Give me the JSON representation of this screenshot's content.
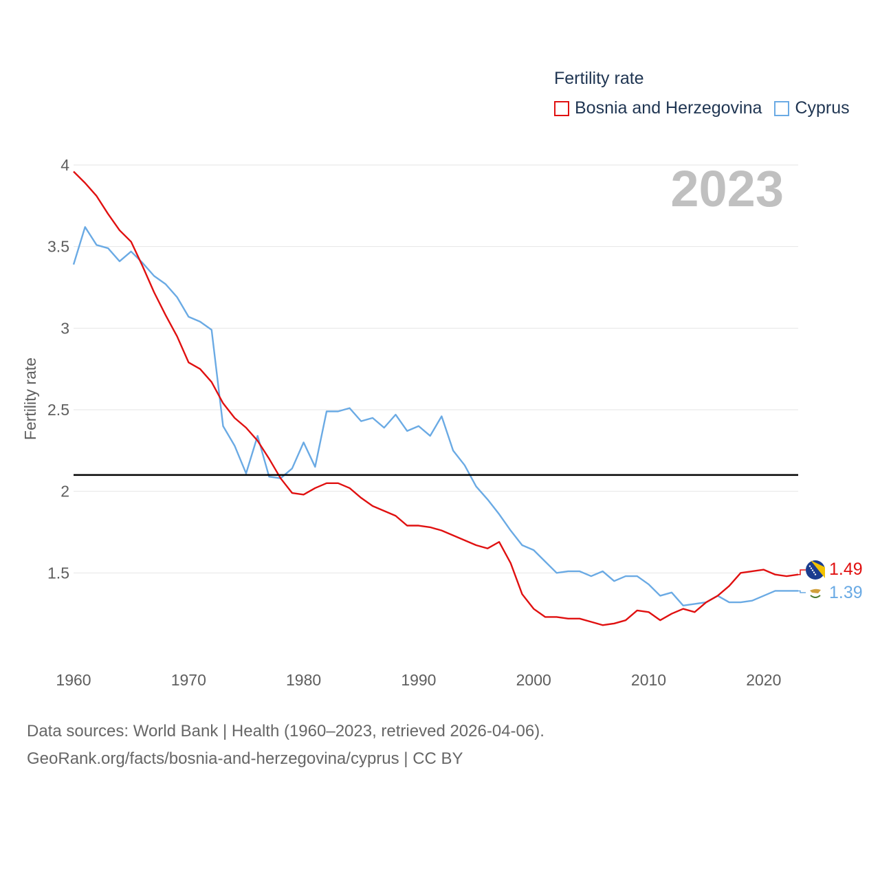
{
  "chart_data": {
    "type": "line",
    "legend_title": "Fertility rate",
    "ylabel": "Fertility rate",
    "xlabel": "",
    "year_label": "2023",
    "xlim": [
      1960,
      2023
    ],
    "ylim": [
      1.0,
      4.0
    ],
    "x_ticks": [
      1960,
      1970,
      1980,
      1990,
      2000,
      2010,
      2020
    ],
    "y_ticks": [
      {
        "value": 1.5,
        "label": "1.5"
      },
      {
        "value": 2,
        "label": "2"
      },
      {
        "value": 2.5,
        "label": "2.5"
      },
      {
        "value": 3,
        "label": "3"
      },
      {
        "value": 3.5,
        "label": "3.5"
      },
      {
        "value": 4,
        "label": "4"
      }
    ],
    "reference_line": 2.1,
    "grid": true,
    "legend_position": "top-right",
    "series": [
      {
        "name": "Bosnia and Herzegovina",
        "color": "#e01010",
        "end_label": "1.49",
        "flag": "bosnia-flag-icon",
        "points": [
          [
            1960,
            3.96
          ],
          [
            1961,
            3.89
          ],
          [
            1962,
            3.81
          ],
          [
            1963,
            3.7
          ],
          [
            1964,
            3.6
          ],
          [
            1965,
            3.53
          ],
          [
            1966,
            3.38
          ],
          [
            1967,
            3.22
          ],
          [
            1968,
            3.08
          ],
          [
            1969,
            2.95
          ],
          [
            1970,
            2.79
          ],
          [
            1971,
            2.75
          ],
          [
            1972,
            2.67
          ],
          [
            1973,
            2.54
          ],
          [
            1974,
            2.45
          ],
          [
            1975,
            2.39
          ],
          [
            1976,
            2.31
          ],
          [
            1977,
            2.2
          ],
          [
            1978,
            2.08
          ],
          [
            1979,
            1.99
          ],
          [
            1980,
            1.98
          ],
          [
            1981,
            2.02
          ],
          [
            1982,
            2.05
          ],
          [
            1983,
            2.05
          ],
          [
            1984,
            2.02
          ],
          [
            1985,
            1.96
          ],
          [
            1986,
            1.91
          ],
          [
            1987,
            1.88
          ],
          [
            1988,
            1.85
          ],
          [
            1989,
            1.79
          ],
          [
            1990,
            1.79
          ],
          [
            1991,
            1.78
          ],
          [
            1992,
            1.76
          ],
          [
            1993,
            1.73
          ],
          [
            1994,
            1.7
          ],
          [
            1995,
            1.67
          ],
          [
            1996,
            1.65
          ],
          [
            1997,
            1.69
          ],
          [
            1998,
            1.56
          ],
          [
            1999,
            1.37
          ],
          [
            2000,
            1.28
          ],
          [
            2001,
            1.23
          ],
          [
            2002,
            1.23
          ],
          [
            2003,
            1.22
          ],
          [
            2004,
            1.22
          ],
          [
            2005,
            1.2
          ],
          [
            2006,
            1.18
          ],
          [
            2007,
            1.19
          ],
          [
            2008,
            1.21
          ],
          [
            2009,
            1.27
          ],
          [
            2010,
            1.26
          ],
          [
            2011,
            1.21
          ],
          [
            2012,
            1.25
          ],
          [
            2013,
            1.28
          ],
          [
            2014,
            1.26
          ],
          [
            2015,
            1.32
          ],
          [
            2016,
            1.36
          ],
          [
            2017,
            1.42
          ],
          [
            2018,
            1.5
          ],
          [
            2019,
            1.51
          ],
          [
            2020,
            1.52
          ],
          [
            2021,
            1.49
          ],
          [
            2022,
            1.48
          ],
          [
            2023,
            1.49
          ]
        ]
      },
      {
        "name": "Cyprus",
        "color": "#6aaae4",
        "end_label": "1.39",
        "flag": "cyprus-flag-icon",
        "points": [
          [
            1960,
            3.39
          ],
          [
            1961,
            3.62
          ],
          [
            1962,
            3.51
          ],
          [
            1963,
            3.49
          ],
          [
            1964,
            3.41
          ],
          [
            1965,
            3.47
          ],
          [
            1966,
            3.4
          ],
          [
            1967,
            3.32
          ],
          [
            1968,
            3.27
          ],
          [
            1969,
            3.19
          ],
          [
            1970,
            3.07
          ],
          [
            1971,
            3.04
          ],
          [
            1972,
            2.99
          ],
          [
            1973,
            2.4
          ],
          [
            1974,
            2.28
          ],
          [
            1975,
            2.11
          ],
          [
            1976,
            2.34
          ],
          [
            1977,
            2.09
          ],
          [
            1978,
            2.08
          ],
          [
            1979,
            2.14
          ],
          [
            1980,
            2.3
          ],
          [
            1981,
            2.15
          ],
          [
            1982,
            2.49
          ],
          [
            1983,
            2.49
          ],
          [
            1984,
            2.51
          ],
          [
            1985,
            2.43
          ],
          [
            1986,
            2.45
          ],
          [
            1987,
            2.39
          ],
          [
            1988,
            2.47
          ],
          [
            1989,
            2.37
          ],
          [
            1990,
            2.4
          ],
          [
            1991,
            2.34
          ],
          [
            1992,
            2.46
          ],
          [
            1993,
            2.25
          ],
          [
            1994,
            2.16
          ],
          [
            1995,
            2.03
          ],
          [
            1996,
            1.95
          ],
          [
            1997,
            1.86
          ],
          [
            1998,
            1.76
          ],
          [
            1999,
            1.67
          ],
          [
            2000,
            1.64
          ],
          [
            2001,
            1.57
          ],
          [
            2002,
            1.5
          ],
          [
            2003,
            1.51
          ],
          [
            2004,
            1.51
          ],
          [
            2005,
            1.48
          ],
          [
            2006,
            1.51
          ],
          [
            2007,
            1.45
          ],
          [
            2008,
            1.48
          ],
          [
            2009,
            1.48
          ],
          [
            2010,
            1.43
          ],
          [
            2011,
            1.36
          ],
          [
            2012,
            1.38
          ],
          [
            2013,
            1.3
          ],
          [
            2014,
            1.31
          ],
          [
            2015,
            1.32
          ],
          [
            2016,
            1.36
          ],
          [
            2017,
            1.32
          ],
          [
            2018,
            1.32
          ],
          [
            2019,
            1.33
          ],
          [
            2020,
            1.36
          ],
          [
            2021,
            1.39
          ],
          [
            2022,
            1.39
          ],
          [
            2023,
            1.39
          ]
        ]
      }
    ]
  },
  "footer": {
    "line1": "Data sources: World Bank | Health (1960–2023, retrieved 2026-04-06).",
    "line2": "GeoRank.org/facts/bosnia-and-herzegovina/cyprus | CC BY"
  }
}
